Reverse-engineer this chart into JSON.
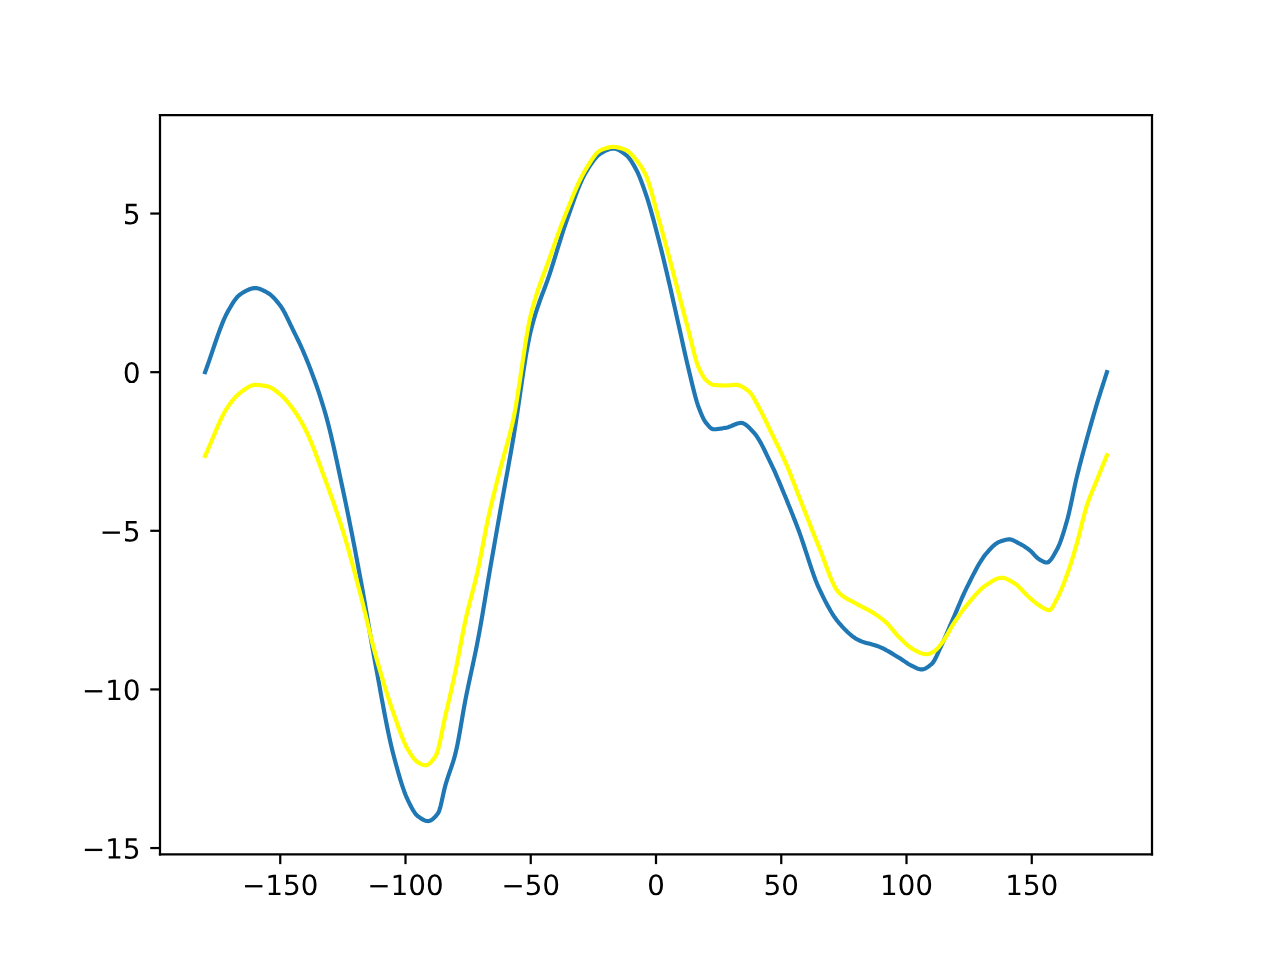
{
  "chart_data": {
    "type": "line",
    "xlim": [
      -198,
      198
    ],
    "ylim": [
      -15.2,
      8.1
    ],
    "xticks": [
      {
        "value": -150,
        "label": "−150"
      },
      {
        "value": -100,
        "label": "−100"
      },
      {
        "value": -50,
        "label": "−50"
      },
      0,
      50,
      100,
      150
    ],
    "yticks": [
      {
        "value": -15,
        "label": "−15"
      },
      {
        "value": -10,
        "label": "−10"
      },
      {
        "value": -5,
        "label": "−5"
      },
      0,
      5
    ],
    "line_style": "solid",
    "series": [
      {
        "color": "#1f77b4",
        "x": [
          -180,
          -171,
          -166,
          -160,
          -155,
          -150,
          -145,
          -140,
          -132,
          -125,
          -118,
          -112,
          -105,
          -99,
          -95,
          -91,
          -87,
          -84,
          -80,
          -76,
          -71,
          -66,
          -62,
          -57,
          -50,
          -42,
          -36,
          -28,
          -22,
          -17,
          -12,
          -8,
          -4,
          1,
          5,
          9,
          13,
          17,
          20,
          23,
          28,
          34,
          39,
          46,
          52,
          57,
          65,
          73,
          81,
          89,
          97,
          102,
          106,
          110,
          114,
          119,
          124,
          132,
          137,
          141,
          145,
          149,
          153,
          156,
          160,
          164,
          168,
          172,
          176,
          180
        ],
        "values": [
          0.0,
          1.9,
          2.45,
          2.65,
          2.5,
          2.1,
          1.35,
          0.5,
          -1.3,
          -3.7,
          -6.5,
          -9.2,
          -12.0,
          -13.5,
          -14.0,
          -14.15,
          -13.9,
          -13.0,
          -12.0,
          -10.3,
          -8.4,
          -6.1,
          -4.3,
          -2.1,
          1.3,
          3.2,
          4.7,
          6.3,
          6.9,
          7.05,
          6.85,
          6.4,
          5.6,
          4.2,
          2.9,
          1.5,
          0.1,
          -1.1,
          -1.6,
          -1.8,
          -1.75,
          -1.6,
          -1.9,
          -2.9,
          -4.0,
          -5.0,
          -6.8,
          -7.9,
          -8.45,
          -8.65,
          -9.0,
          -9.25,
          -9.37,
          -9.2,
          -8.6,
          -7.7,
          -6.8,
          -5.7,
          -5.35,
          -5.27,
          -5.4,
          -5.6,
          -5.9,
          -6.0,
          -5.6,
          -4.7,
          -3.3,
          -2.1,
          -1.0,
          0.0
        ]
      },
      {
        "color": "#ffff00",
        "x": [
          -180,
          -171,
          -166,
          -160,
          -155,
          -150,
          -145,
          -140,
          -132,
          -125,
          -118,
          -112,
          -105,
          -99,
          -95,
          -92,
          -88,
          -84,
          -80,
          -76,
          -71,
          -67,
          -62,
          -57,
          -50,
          -42,
          -36,
          -28,
          -22,
          -17,
          -12,
          -8,
          -4,
          1,
          5,
          9,
          13,
          17,
          20,
          23,
          28,
          32,
          37,
          41,
          46,
          52,
          57,
          65,
          73,
          80,
          87,
          92,
          97,
          103,
          108,
          111,
          114,
          119,
          124,
          132,
          138,
          143,
          149,
          153,
          157,
          160,
          164,
          168,
          172,
          176,
          180
        ],
        "values": [
          -2.64,
          -1.1,
          -0.65,
          -0.4,
          -0.45,
          -0.7,
          -1.15,
          -1.8,
          -3.4,
          -5.0,
          -7.0,
          -8.9,
          -10.7,
          -11.9,
          -12.3,
          -12.39,
          -12.1,
          -10.8,
          -9.4,
          -7.8,
          -6.2,
          -4.6,
          -3.0,
          -1.5,
          1.8,
          3.7,
          5.0,
          6.4,
          7.0,
          7.1,
          7.0,
          6.7,
          6.2,
          4.85,
          3.7,
          2.5,
          1.3,
          0.15,
          -0.25,
          -0.4,
          -0.42,
          -0.4,
          -0.6,
          -1.1,
          -1.9,
          -2.9,
          -3.9,
          -5.5,
          -6.95,
          -7.3,
          -7.6,
          -7.9,
          -8.35,
          -8.75,
          -8.89,
          -8.8,
          -8.55,
          -7.9,
          -7.35,
          -6.7,
          -6.48,
          -6.65,
          -7.1,
          -7.35,
          -7.5,
          -7.15,
          -6.4,
          -5.4,
          -4.2,
          -3.4,
          -2.62
        ]
      }
    ]
  }
}
